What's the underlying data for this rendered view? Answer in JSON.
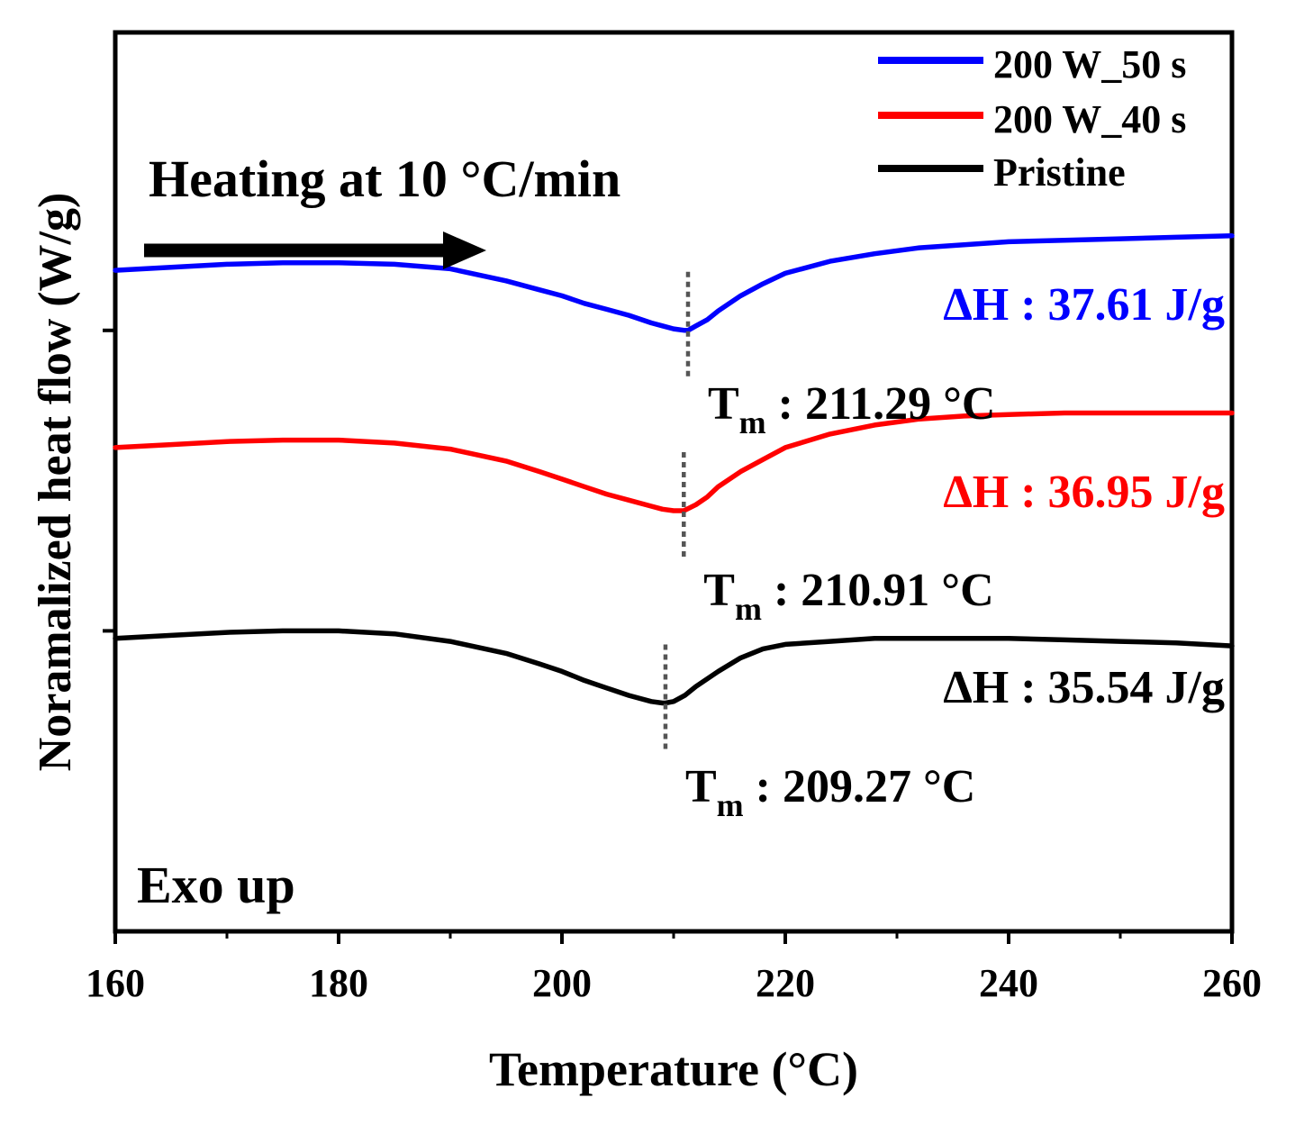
{
  "chart_data": {
    "type": "line",
    "xlabel": "Temperature (°C)",
    "ylabel": "Noramalized heat flow (W/g)",
    "xlim": [
      160,
      260
    ],
    "x_ticks": [
      160,
      180,
      200,
      220,
      240,
      260
    ],
    "y_tick_count": 2,
    "y_tick_labels_shown": false,
    "grid": false,
    "legend_position": "top-right",
    "annotations": {
      "heating_text": "Heating at 10 °C/min",
      "exo_text": "Exo up"
    },
    "series": [
      {
        "name": "200 W_50 s",
        "color": "#0000ff",
        "x": [
          160,
          165,
          170,
          175,
          180,
          185,
          190,
          195,
          198,
          200,
          202,
          204,
          206,
          208,
          209,
          210,
          211,
          211.29,
          212,
          213,
          214,
          216,
          218,
          220,
          224,
          228,
          232,
          236,
          240,
          245,
          250,
          255,
          260
        ],
        "y": [
          4.4,
          4.42,
          4.44,
          4.45,
          4.45,
          4.44,
          4.41,
          4.33,
          4.27,
          4.23,
          4.18,
          4.14,
          4.1,
          4.05,
          4.03,
          4.01,
          4.0,
          4.0,
          4.03,
          4.07,
          4.13,
          4.23,
          4.31,
          4.38,
          4.46,
          4.51,
          4.55,
          4.57,
          4.59,
          4.6,
          4.61,
          4.62,
          4.63
        ],
        "tm": 211.29,
        "tm_label": {
          "main": "T",
          "sub": "m",
          "rest": " : 211.29 °C"
        },
        "dh_label": "ΔH : 37.61 J/g"
      },
      {
        "name": "200 W_40 s",
        "color": "#ff0000",
        "x": [
          160,
          165,
          170,
          175,
          180,
          185,
          190,
          195,
          198,
          200,
          202,
          204,
          206,
          208,
          209,
          210,
          210.91,
          212,
          213,
          214,
          216,
          218,
          220,
          224,
          228,
          232,
          236,
          240,
          245,
          250,
          255,
          260
        ],
        "y": [
          3.22,
          3.24,
          3.26,
          3.27,
          3.27,
          3.25,
          3.21,
          3.13,
          3.06,
          3.01,
          2.96,
          2.91,
          2.87,
          2.83,
          2.81,
          2.8,
          2.8,
          2.84,
          2.89,
          2.96,
          3.06,
          3.14,
          3.22,
          3.31,
          3.37,
          3.41,
          3.43,
          3.44,
          3.45,
          3.45,
          3.45,
          3.45
        ],
        "tm": 210.91,
        "tm_label": {
          "main": "T",
          "sub": "m",
          "rest": " : 210.91 °C"
        },
        "dh_label": "ΔH : 36.95 J/g"
      },
      {
        "name": "Pristine",
        "color": "#000000",
        "x": [
          160,
          165,
          170,
          175,
          180,
          185,
          190,
          195,
          198,
          200,
          202,
          204,
          206,
          208,
          209,
          209.27,
          210,
          211,
          212,
          214,
          216,
          218,
          220,
          224,
          228,
          232,
          236,
          240,
          245,
          250,
          255,
          260
        ],
        "y": [
          1.95,
          1.97,
          1.99,
          2.0,
          2.0,
          1.98,
          1.93,
          1.85,
          1.78,
          1.73,
          1.67,
          1.62,
          1.57,
          1.53,
          1.52,
          1.52,
          1.53,
          1.57,
          1.63,
          1.73,
          1.82,
          1.88,
          1.91,
          1.93,
          1.95,
          1.95,
          1.95,
          1.95,
          1.94,
          1.93,
          1.92,
          1.9
        ],
        "tm": 209.27,
        "tm_label": {
          "main": "T",
          "sub": "m",
          "rest": " : 209.27 °C"
        },
        "dh_label": "ΔH : 35.54 J/g"
      }
    ]
  }
}
